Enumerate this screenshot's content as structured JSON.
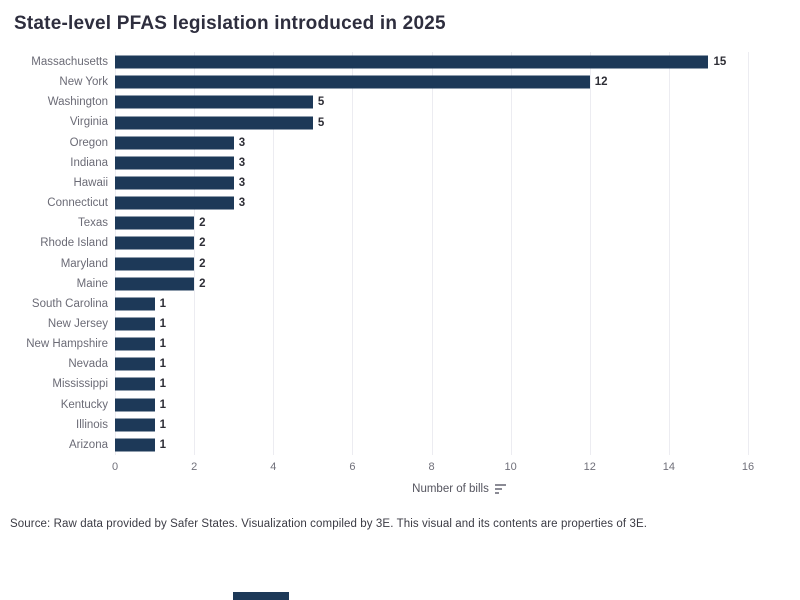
{
  "title": "State-level PFAS legislation introduced in 2025",
  "chart_data": {
    "type": "bar",
    "orientation": "horizontal",
    "title": "State-level PFAS legislation introduced in 2025",
    "categories": [
      "Massachusetts",
      "New York",
      "Washington",
      "Virginia",
      "Oregon",
      "Indiana",
      "Hawaii",
      "Connecticut",
      "Texas",
      "Rhode Island",
      "Maryland",
      "Maine",
      "South Carolina",
      "New Jersey",
      "New Hampshire",
      "Nevada",
      "Mississippi",
      "Kentucky",
      "Illinois",
      "Arizona"
    ],
    "values": [
      15,
      12,
      5,
      5,
      3,
      3,
      3,
      3,
      2,
      2,
      2,
      2,
      1,
      1,
      1,
      1,
      1,
      1,
      1,
      1
    ],
    "xlabel": "Number of bills",
    "ylabel": "",
    "xlim": [
      0,
      16
    ],
    "x_ticks": [
      0,
      2,
      4,
      6,
      8,
      10,
      12,
      14,
      16
    ],
    "grid": "vertical-on",
    "legend": "none",
    "sort_order": "descending",
    "data_labels": "shown-at-bar-end"
  },
  "axis": {
    "xlabel": "Number of bills",
    "sort_icon": "sort-descending-icon"
  },
  "source": "Source: Raw data provided by Safer States. Visualization compiled by 3E. This visual and its contents are properties of 3E.",
  "colors": {
    "bar": "#1d3958",
    "title_text": "#2e2e3e",
    "category_label_text": "#6b6b76",
    "value_label_text": "#2e2e36",
    "tick_label_text": "#70707a",
    "axis_label_text": "#55555f",
    "source_text": "#3b3b44",
    "gridline": "#ececf1",
    "background": "#ffffff",
    "footer_brand_bar": "#1d3958"
  }
}
